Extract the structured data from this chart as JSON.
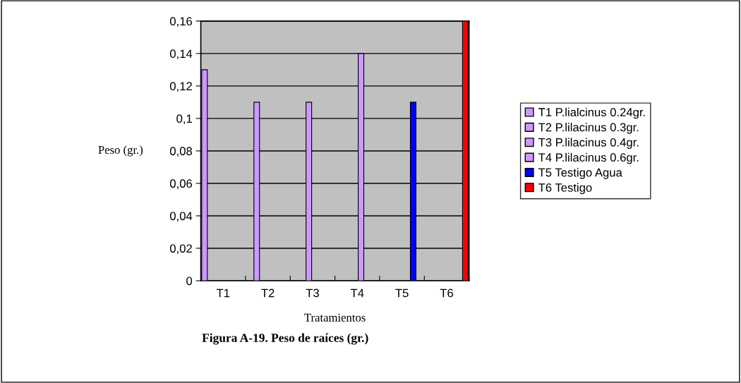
{
  "chart_data": {
    "type": "bar",
    "title": "Figura A-19. Peso de raíces (gr.)",
    "xlabel": "Tratamientos",
    "ylabel": "Peso (gr.)",
    "categories": [
      "T1",
      "T2",
      "T3",
      "T4",
      "T5",
      "T6"
    ],
    "series": [
      {
        "name": "T1 P.lialcinus 0.24gr.",
        "color": "#cc99ff",
        "values": [
          0.13,
          null,
          null,
          null,
          null,
          null
        ]
      },
      {
        "name": "T2 P.lilacinus 0.3gr.",
        "color": "#cc99ff",
        "values": [
          null,
          0.11,
          null,
          null,
          null,
          null
        ]
      },
      {
        "name": "T3 P.lilacinus 0.4gr.",
        "color": "#cc99ff",
        "values": [
          null,
          null,
          0.11,
          null,
          null,
          null
        ]
      },
      {
        "name": "T4 P.lilacinus 0.6gr.",
        "color": "#cc99ff",
        "values": [
          null,
          null,
          null,
          0.14,
          null,
          null
        ]
      },
      {
        "name": "T5 Testigo Agua",
        "color": "#0000ff",
        "values": [
          null,
          null,
          null,
          null,
          0.11,
          null
        ]
      },
      {
        "name": "T6 Testigo",
        "color": "#ff0000",
        "values": [
          null,
          null,
          null,
          null,
          null,
          0.16
        ]
      }
    ],
    "ylim": [
      0,
      0.16
    ],
    "yticks": [
      0,
      {
        "value": 0.02,
        "label": "0,02"
      },
      {
        "value": 0.04,
        "label": "0,04"
      },
      {
        "value": 0.06,
        "label": "0,06"
      },
      {
        "value": 0.08,
        "label": "0,08"
      },
      {
        "value": 0.1,
        "label": "0,1"
      },
      {
        "value": 0.12,
        "label": "0,12"
      },
      {
        "value": 0.14,
        "label": "0,14"
      },
      {
        "value": 0.16,
        "label": "0,16"
      }
    ],
    "grid": "y",
    "legend": "right"
  }
}
